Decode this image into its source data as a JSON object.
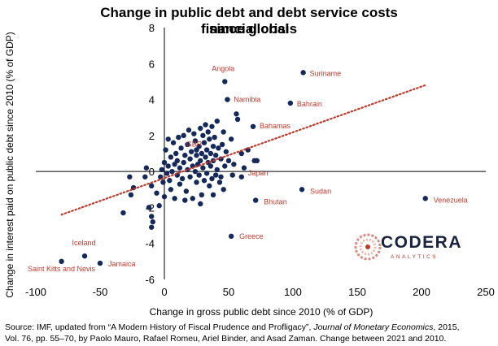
{
  "chart_data": {
    "type": "scatter",
    "title_lines": [
      "Change in public debt and debt service costs since global",
      "financial crisis"
    ],
    "xlabel": "Change in gross public debt since 2010 (% of GDP)",
    "ylabel": "Change in interest paid on public debt since 2010 (% of GDP)",
    "xlim": [
      -100,
      250
    ],
    "ylim": [
      -6,
      8
    ],
    "x_ticks": [
      -100,
      -50,
      0,
      50,
      100,
      150,
      200,
      250
    ],
    "y_ticks": [
      -6,
      -4,
      -2,
      0,
      2,
      4,
      6,
      8
    ],
    "x_tick_labels": [
      "-100",
      "-50",
      "0",
      "50",
      "100",
      "150",
      "200",
      "250"
    ],
    "y_tick_labels": [
      "-6",
      "-4",
      "-2",
      "0",
      "2",
      "4",
      "6",
      "8"
    ],
    "grid": false,
    "trendline": {
      "x": [
        -80,
        203
      ],
      "y": [
        -2.4,
        4.8
      ],
      "style": "dotted",
      "color": "#c0392b"
    },
    "labeled_points": [
      {
        "name": "Angola",
        "x": 47,
        "y": 5.0
      },
      {
        "name": "Suriname",
        "x": 108,
        "y": 5.5
      },
      {
        "name": "Namibia",
        "x": 49,
        "y": 4.0
      },
      {
        "name": "Bahrain",
        "x": 98,
        "y": 3.8
      },
      {
        "name": "Bahamas",
        "x": 69,
        "y": 2.5
      },
      {
        "name": "GBR",
        "x": 25,
        "y": 1.2
      },
      {
        "name": "Japan",
        "x": 60,
        "y": -0.3
      },
      {
        "name": "Sudan",
        "x": 107,
        "y": -1.0
      },
      {
        "name": "Bhutan",
        "x": 71,
        "y": -1.6
      },
      {
        "name": "Venezuela",
        "x": 203,
        "y": -1.5
      },
      {
        "name": "Greece",
        "x": 52,
        "y": -3.6
      },
      {
        "name": "Iceland",
        "x": -62,
        "y": -4.7
      },
      {
        "name": "Jamaica",
        "x": -50,
        "y": -5.1
      },
      {
        "name": "Saint Kitts and Nevis",
        "x": -80,
        "y": -5.0
      }
    ],
    "other_points": [
      [
        -32,
        -2.3
      ],
      [
        -26,
        -1.3
      ],
      [
        -24,
        -0.9
      ],
      [
        -27,
        -0.3
      ],
      [
        -15,
        -0.3
      ],
      [
        -14,
        0.2
      ],
      [
        -10,
        -0.8
      ],
      [
        -12,
        -2.0
      ],
      [
        -10,
        -2.5
      ],
      [
        -9,
        -2.8
      ],
      [
        -10,
        -3.1
      ],
      [
        -6,
        -1.2
      ],
      [
        -4,
        -1.9
      ],
      [
        -3,
        -0.3
      ],
      [
        -2,
        0.1
      ],
      [
        -1,
        -0.6
      ],
      [
        0,
        -1.4
      ],
      [
        0,
        0.5
      ],
      [
        1,
        1.2
      ],
      [
        2,
        -0.1
      ],
      [
        3,
        0.3
      ],
      [
        4,
        -0.5
      ],
      [
        5,
        0.8
      ],
      [
        5,
        -1.0
      ],
      [
        6,
        0.0
      ],
      [
        7,
        1.6
      ],
      [
        8,
        -1.5
      ],
      [
        8,
        0.4
      ],
      [
        9,
        1.0
      ],
      [
        10,
        -0.2
      ],
      [
        10,
        0.6
      ],
      [
        11,
        1.9
      ],
      [
        12,
        -0.7
      ],
      [
        12,
        0.2
      ],
      [
        13,
        1.3
      ],
      [
        14,
        -0.4
      ],
      [
        15,
        0.5
      ],
      [
        15,
        2.0
      ],
      [
        16,
        0.9
      ],
      [
        17,
        -1.1
      ],
      [
        18,
        0.1
      ],
      [
        18,
        1.5
      ],
      [
        19,
        2.3
      ],
      [
        20,
        -0.3
      ],
      [
        20,
        0.7
      ],
      [
        21,
        1.1
      ],
      [
        22,
        -1.5
      ],
      [
        22,
        0.3
      ],
      [
        23,
        2.1
      ],
      [
        24,
        0.0
      ],
      [
        24,
        1.7
      ],
      [
        25,
        -0.6
      ],
      [
        25,
        0.9
      ],
      [
        26,
        0.4
      ],
      [
        27,
        1.4
      ],
      [
        27,
        -0.2
      ],
      [
        28,
        2.4
      ],
      [
        28,
        0.6
      ],
      [
        29,
        -1.3
      ],
      [
        29,
        1.0
      ],
      [
        30,
        0.2
      ],
      [
        30,
        2.0
      ],
      [
        31,
        -0.5
      ],
      [
        31,
        1.6
      ],
      [
        32,
        0.8
      ],
      [
        32,
        2.6
      ],
      [
        33,
        -0.1
      ],
      [
        33,
        1.2
      ],
      [
        34,
        0.5
      ],
      [
        34,
        2.2
      ],
      [
        35,
        -0.8
      ],
      [
        35,
        1.8
      ],
      [
        36,
        0.3
      ],
      [
        36,
        1.0
      ],
      [
        37,
        2.5
      ],
      [
        37,
        -0.4
      ],
      [
        38,
        1.4
      ],
      [
        38,
        0.6
      ],
      [
        39,
        1.9
      ],
      [
        40,
        -0.2
      ],
      [
        40,
        0.9
      ],
      [
        41,
        2.8
      ],
      [
        41,
        0.1
      ],
      [
        42,
        1.3
      ],
      [
        43,
        -0.6
      ],
      [
        44,
        0.7
      ],
      [
        45,
        1.5
      ],
      [
        46,
        2.2
      ],
      [
        47,
        0.3
      ],
      [
        48,
        1.1
      ],
      [
        50,
        0.6
      ],
      [
        52,
        1.8
      ],
      [
        54,
        0.4
      ],
      [
        56,
        3.2
      ],
      [
        57,
        2.9
      ],
      [
        60,
        1.0
      ],
      [
        62,
        0.2
      ],
      [
        65,
        1.2
      ],
      [
        70,
        0.6
      ],
      [
        72,
        0.6
      ],
      [
        28,
        -1.8
      ],
      [
        38,
        -1.3
      ],
      [
        46,
        -1.0
      ],
      [
        53,
        -0.2
      ],
      [
        16,
        -1.6
      ],
      [
        3,
        1.8
      ],
      [
        44,
        -0.3
      ]
    ]
  },
  "source_line1_pre": "Source: IMF, updated from “A Modern History of Fiscal Prudence and Profligacy”, ",
  "source_journal": "Journal of Monetary Economics",
  "source_line1_post": ", 2015,",
  "source_line2": "Vol. 76, pp. 55–70, by Paolo Mauro, Rafael Romeu, Ariel Binder, and Asad Zaman. Change between 2021 and 2010.",
  "logo": {
    "word": "CODERA",
    "sub": "ANALYTICS"
  },
  "colors": {
    "point": "#14285a",
    "label": "#c0392b",
    "trend": "#c0392b",
    "axis": "#000000"
  }
}
